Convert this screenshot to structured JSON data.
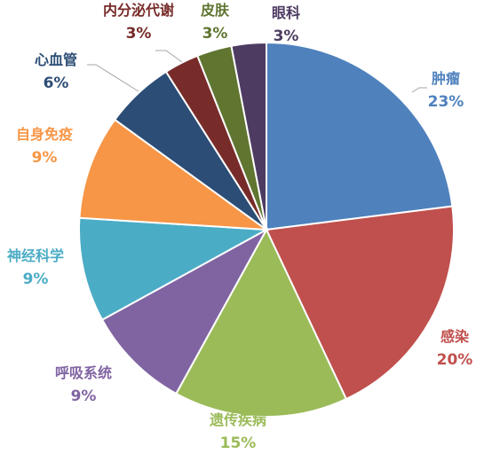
{
  "chart_data": {
    "type": "pie",
    "title": "",
    "start_angle_deg": 0,
    "direction": "clockwise",
    "slices": [
      {
        "name": "肿瘤",
        "value": 23,
        "label": "23%",
        "color": "#4f81bd",
        "label_color": "#4f81bd"
      },
      {
        "name": "感染",
        "value": 20,
        "label": "20%",
        "color": "#c0504d",
        "label_color": "#c0504d"
      },
      {
        "name": "遗传疾病",
        "value": 15,
        "label": "15%",
        "color": "#9bbb59",
        "label_color": "#9bbb59"
      },
      {
        "name": "呼吸系统",
        "value": 9,
        "label": "9%",
        "color": "#8064a2",
        "label_color": "#8064a2"
      },
      {
        "name": "神经科学",
        "value": 9,
        "label": "9%",
        "color": "#4bacc6",
        "label_color": "#4bacc6"
      },
      {
        "name": "自身免疫",
        "value": 9,
        "label": "9%",
        "color": "#f79646",
        "label_color": "#f79646"
      },
      {
        "name": "心血管",
        "value": 6,
        "label": "6%",
        "color": "#2c4d75",
        "label_color": "#2c4d75"
      },
      {
        "name": "内分泌代谢",
        "value": 3,
        "label": "3%",
        "color": "#772c2a",
        "label_color": "#772c2a"
      },
      {
        "name": "皮肤",
        "value": 3,
        "label": "3%",
        "color": "#5f7530",
        "label_color": "#5f7530"
      },
      {
        "name": "眼科",
        "value": 3,
        "label": "3%",
        "color": "#4d3b62",
        "label_color": "#4d3b62"
      }
    ]
  }
}
